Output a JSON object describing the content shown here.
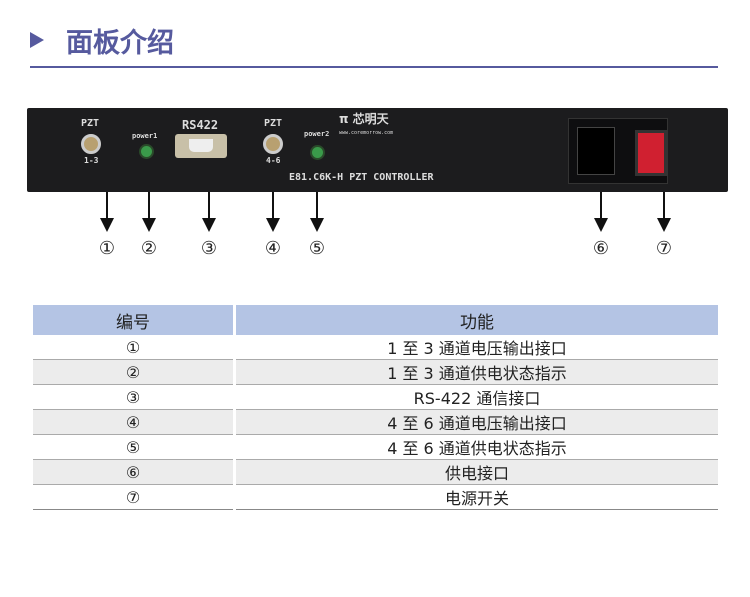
{
  "title": "面板介绍",
  "accent": "#565a9e",
  "panel": {
    "pzt1": "PZT",
    "ch1": "1-3",
    "power1": "power1",
    "rs422": "RS422",
    "pzt2": "PZT",
    "ch2": "4-6",
    "power2": "power2",
    "brand": "芯明天",
    "site": "www.coremorrow.com",
    "model": "E81.C6K-H PZT CONTROLLER"
  },
  "callouts": [
    "①",
    "②",
    "③",
    "④",
    "⑤",
    "⑥",
    "⑦"
  ],
  "table": {
    "headers": [
      "编号",
      "功能"
    ],
    "rows": [
      [
        "①",
        "1 至 3 通道电压输出接口"
      ],
      [
        "②",
        "1 至 3 通道供电状态指示"
      ],
      [
        "③",
        "RS-422 通信接口"
      ],
      [
        "④",
        "4 至 6 通道电压输出接口"
      ],
      [
        "⑤",
        "4 至 6 通道供电状态指示"
      ],
      [
        "⑥",
        "供电接口"
      ],
      [
        "⑦",
        "电源开关"
      ]
    ]
  }
}
